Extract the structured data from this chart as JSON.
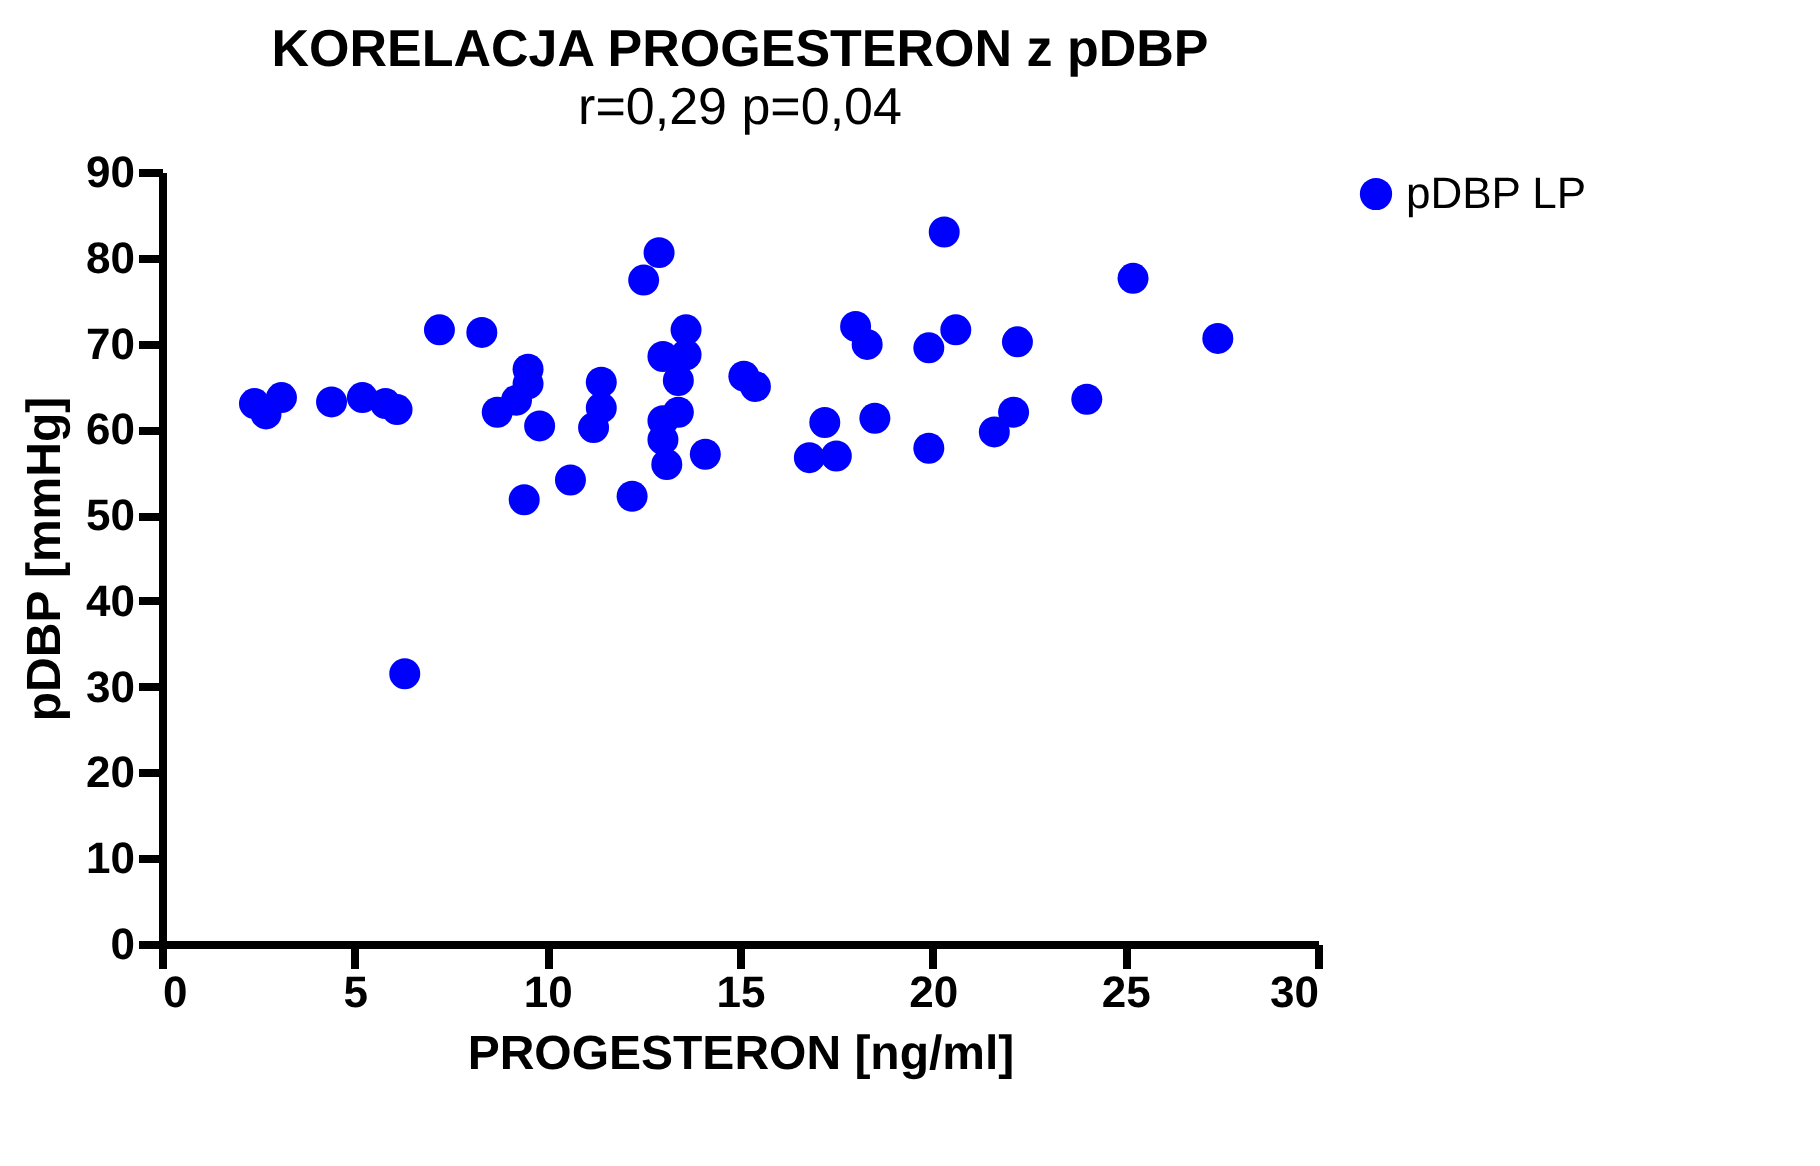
{
  "chart_data": {
    "type": "scatter",
    "title": "KORELACJA PROGESTERON z pDBP",
    "subtitle": "r=0,29 p=0,04",
    "xlabel": "PROGESTERON [ng/ml]",
    "ylabel": "pDBP [mmHg]",
    "xlim": [
      0,
      30
    ],
    "xticks": [
      0,
      5,
      10,
      15,
      20,
      25,
      30
    ],
    "ylim": [
      0,
      90
    ],
    "yticks": [
      0,
      10,
      20,
      30,
      40,
      50,
      60,
      70,
      80,
      90
    ],
    "grid": false,
    "legend": "right",
    "marker": "circle",
    "series": [
      {
        "name": "pDBP LP",
        "color": "#0000ff",
        "x": [
          2.4,
          2.7,
          3.1,
          4.4,
          5.2,
          5.8,
          6.1,
          6.3,
          7.2,
          8.3,
          8.7,
          9.2,
          9.5,
          9.5,
          9.4,
          9.8,
          10.6,
          11.2,
          11.4,
          11.4,
          12.2,
          12.5,
          12.9,
          13.0,
          13.0,
          13.1,
          13.4,
          13.0,
          13.4,
          13.6,
          13.6,
          14.1,
          15.1,
          15.4,
          16.8,
          17.2,
          17.5,
          18.0,
          18.3,
          18.5,
          19.9,
          19.9,
          20.3,
          20.6,
          21.6,
          22.1,
          22.2,
          24.0,
          25.2,
          27.4
        ],
        "values": [
          63.0,
          61.8,
          63.7,
          63.2,
          63.7,
          63.0,
          62.3,
          31.5,
          71.6,
          71.3,
          62.0,
          63.4,
          65.3,
          67.0,
          51.8,
          60.4,
          54.1,
          60.2,
          62.5,
          65.5,
          52.2,
          77.4,
          80.6,
          68.5,
          58.8,
          55.9,
          62.0,
          61.0,
          65.7,
          68.7,
          71.6,
          57.1,
          66.2,
          65.0,
          56.7,
          60.8,
          56.9,
          72.0,
          69.9,
          61.3,
          57.8,
          69.5,
          83.0,
          71.6,
          59.7,
          62.0,
          70.2,
          63.5,
          77.6,
          70.6
        ]
      }
    ]
  }
}
